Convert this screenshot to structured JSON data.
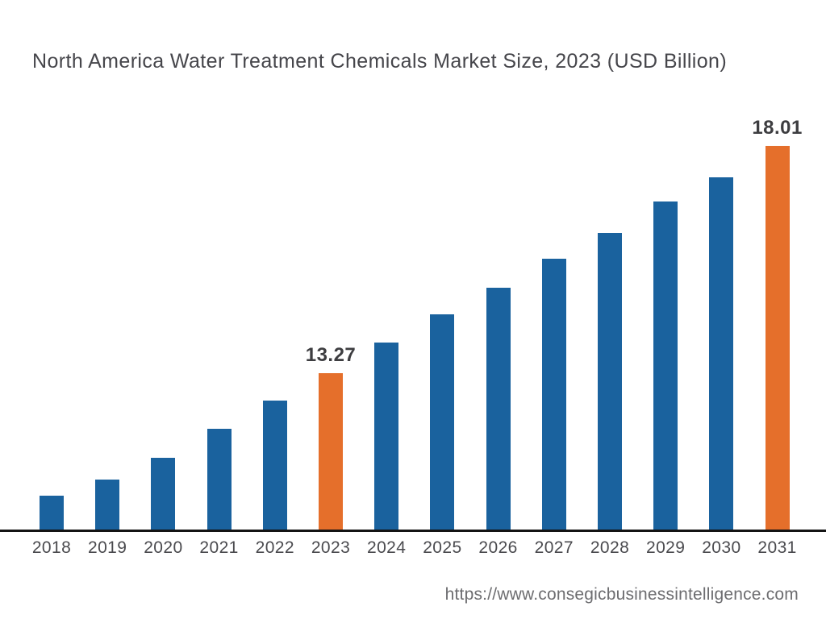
{
  "page": {
    "background_color": "#ffffff"
  },
  "chart_data": {
    "type": "bar",
    "title": "North America Water Treatment Chemicals Market Size, 2023 (USD Billion)",
    "unit": "USD Billion",
    "categories": [
      "2018",
      "2019",
      "2020",
      "2021",
      "2022",
      "2023",
      "2024",
      "2025",
      "2026",
      "2027",
      "2028",
      "2029",
      "2030",
      "2031"
    ],
    "values": [
      10.7,
      11.05,
      11.5,
      12.1,
      12.7,
      13.27,
      13.9,
      14.5,
      15.05,
      15.65,
      16.2,
      16.85,
      17.35,
      18.01
    ],
    "values_note": "Only 2023 and 2031 carry printed data labels; remaining values estimated from bar heights.",
    "data_labels": {
      "2023": "13.27",
      "2031": "18.01"
    },
    "highlighted_categories": [
      "2023",
      "2031"
    ],
    "colors": {
      "bar": "#1a629e",
      "highlight_bar": "#e56f2b",
      "axis_line": "#141414"
    },
    "ylim": [
      10,
      18.6
    ],
    "grid": false,
    "legend": false,
    "xlabel": "",
    "ylabel": ""
  },
  "footer": {
    "url": "https://www.consegicbusinessintelligence.com"
  }
}
